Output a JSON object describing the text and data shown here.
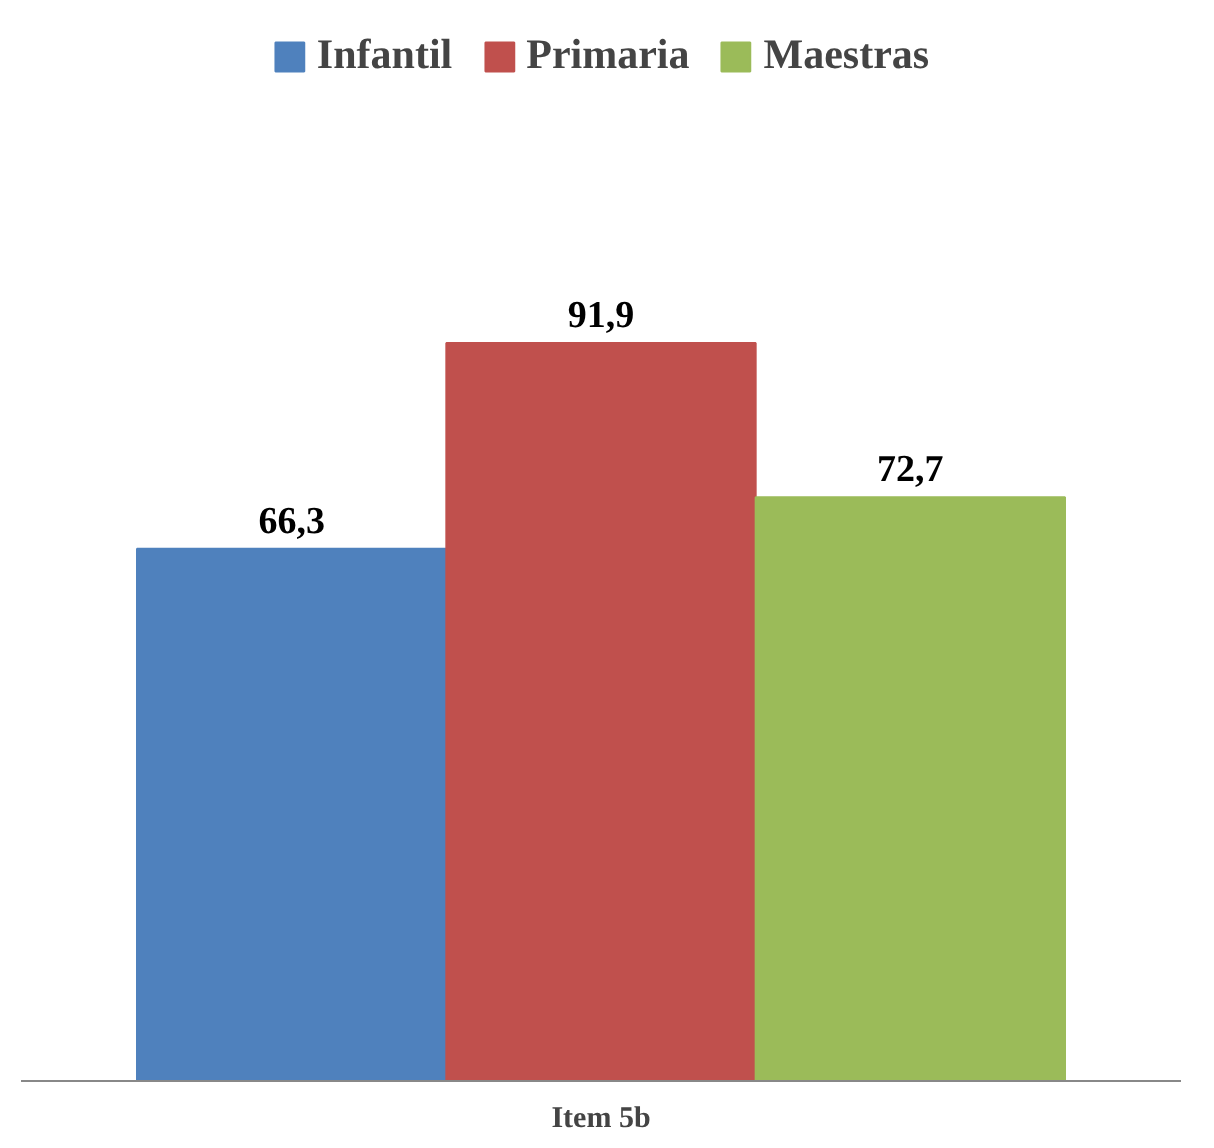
{
  "chart_data": {
    "type": "bar",
    "xlabel": "Item 5b",
    "categories": [
      null
    ],
    "series": [
      {
        "name": "Infantil",
        "color": "#4f81bd",
        "values": [
          66.3
        ],
        "value_labels": [
          "66,3"
        ]
      },
      {
        "name": "Primaria",
        "color": "#c0504d",
        "values": [
          91.9
        ],
        "value_labels": [
          "91,9"
        ]
      },
      {
        "name": "Maestras",
        "color": "#9bbb59",
        "values": [
          72.7
        ],
        "value_labels": [
          "72,7"
        ]
      }
    ],
    "legend": "top"
  }
}
